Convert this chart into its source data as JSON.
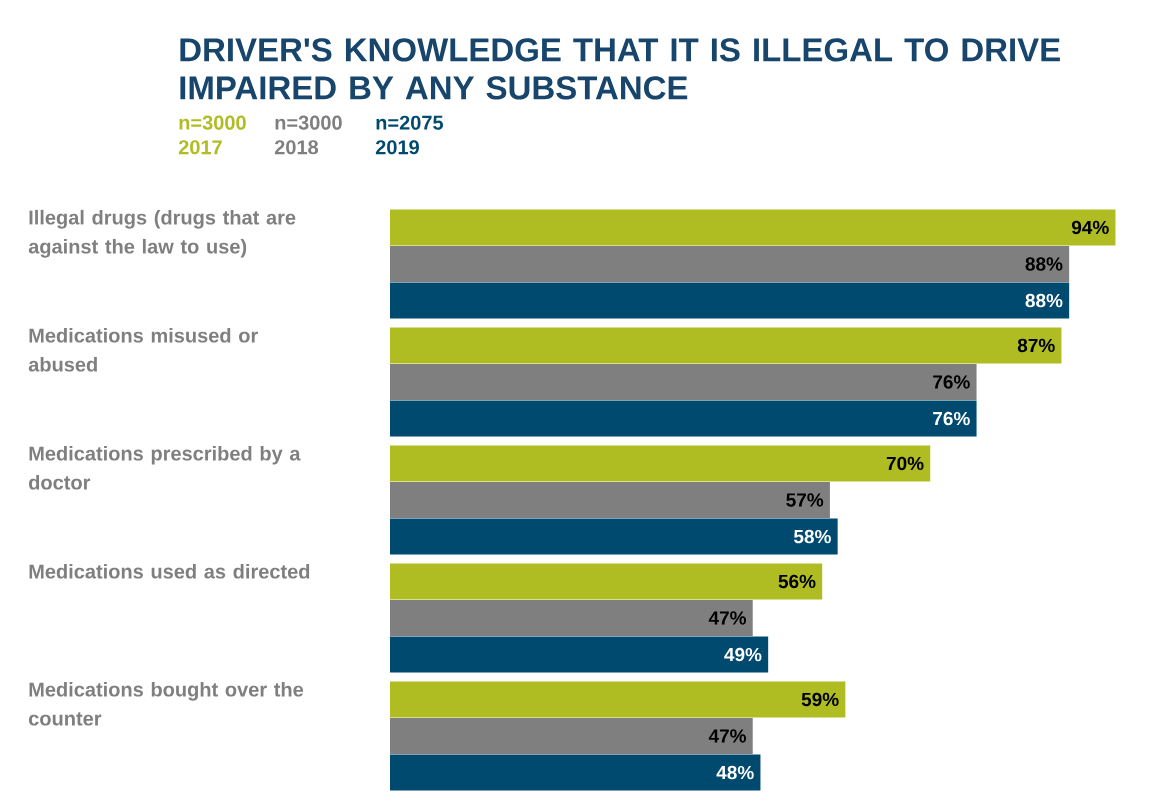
{
  "chart_data": {
    "type": "bar",
    "orientation": "horizontal",
    "title": "DRIVER'S KNOWLEDGE THAT IT IS ILLEGAL TO DRIVE IMPAIRED BY ANY SUBSTANCE",
    "categories": [
      "Illegal drugs (drugs that are against the law to use)",
      "Medications misused or abused",
      "Medications prescribed by a doctor",
      "Medications used as directed",
      "Medications bought over the counter"
    ],
    "legend": "top left",
    "tick_labels": false,
    "annotations": [
      "n=3000",
      "n=3000",
      "n=2075"
    ],
    "series": [
      {
        "name": "2017",
        "color": "#afbd22",
        "values": [
          94,
          87,
          70,
          56,
          59
        ],
        "value_labels": [
          "94%",
          "87%",
          "70%",
          "56%",
          "59%"
        ]
      },
      {
        "name": "2018",
        "color": "#7f7f7f",
        "values": [
          88,
          76,
          57,
          47,
          47
        ],
        "value_labels": [
          "88%",
          "76%",
          "57%",
          "47%",
          "47%"
        ]
      },
      {
        "name": "2019",
        "color": "#004a70",
        "values": [
          88,
          76,
          58,
          49,
          48
        ],
        "value_labels": [
          "88%",
          "76%",
          "58%",
          "49%",
          "48%"
        ]
      }
    ]
  }
}
